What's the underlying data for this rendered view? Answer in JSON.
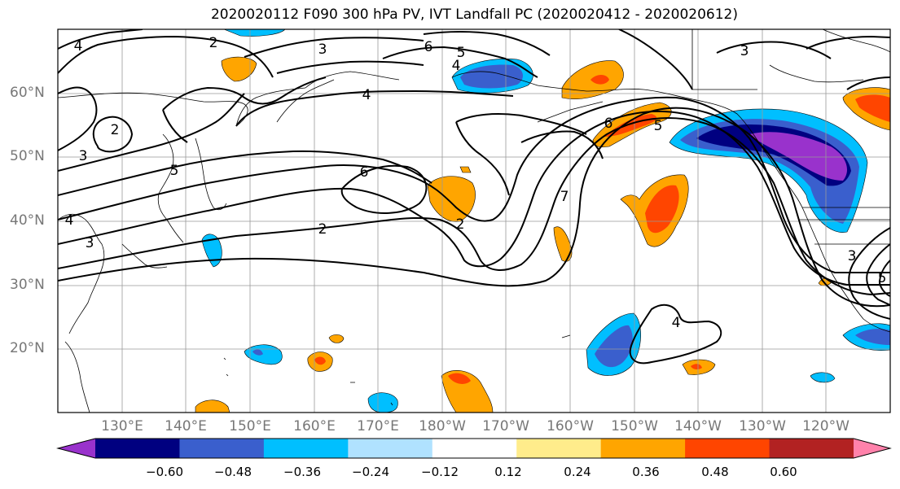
{
  "title": "2020020112 F090 300 hPa PV, IVT Landfall PC (2020020412 - 2020020612)",
  "lat_labels": [
    "60°N",
    "50°N",
    "40°N",
    "30°N",
    "20°N"
  ],
  "lon_labels": [
    "130°E",
    "140°E",
    "150°E",
    "160°E",
    "170°E",
    "180°W",
    "170°W",
    "160°W",
    "150°W",
    "140°W",
    "130°W",
    "120°W"
  ],
  "colorbar": {
    "colors": [
      "#9932CC",
      "#000080",
      "#3A5FCD",
      "#00BFFF",
      "#B0E2FF",
      "#FFFFFF",
      "#FFEC8B",
      "#FFA500",
      "#FF4500",
      "#B22222",
      "#FF82AB"
    ],
    "tick_labels": [
      "−0.60",
      "−0.48",
      "−0.36",
      "−0.24",
      "−0.12",
      "0.12",
      "0.24",
      "0.36",
      "0.48",
      "0.60"
    ],
    "extend": "both"
  },
  "contour_labels": [
    "2",
    "3",
    "4",
    "5",
    "6",
    "2",
    "3",
    "4",
    "5",
    "6",
    "7",
    "2",
    "3",
    "4",
    "5",
    "6",
    "5",
    "2",
    "3",
    "4",
    "3",
    "4"
  ]
}
